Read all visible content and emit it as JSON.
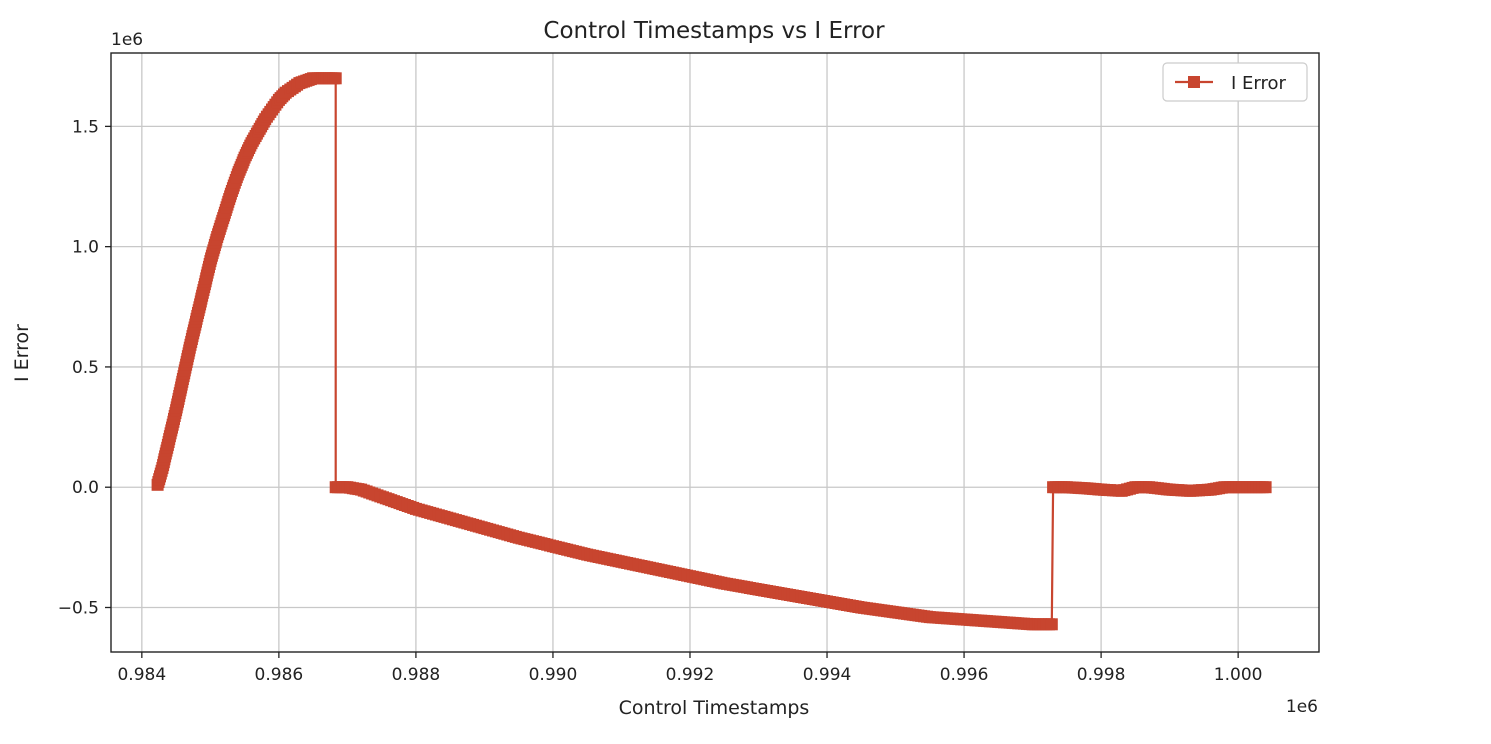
{
  "chart_data": {
    "type": "line",
    "title": "Control Timestamps vs I Error",
    "xlabel": "Control Timestamps",
    "ylabel": "I Error",
    "x_offset_label": "1e6",
    "y_offset_label": "1e6",
    "xlim": [
      0.98355,
      1.00118
    ],
    "ylim": [
      -0.685,
      1.805
    ],
    "x_ticks": [
      0.984,
      0.986,
      0.988,
      0.99,
      0.992,
      0.994,
      0.996,
      0.998,
      1.0
    ],
    "x_tick_labels": [
      "0.984",
      "0.986",
      "0.988",
      "0.990",
      "0.992",
      "0.994",
      "0.996",
      "0.998",
      "1.000"
    ],
    "y_ticks": [
      -0.5,
      0.0,
      0.5,
      1.0,
      1.5
    ],
    "y_tick_labels": [
      "−0.5",
      "0.0",
      "0.5",
      "1.0",
      "1.5"
    ],
    "grid": true,
    "legend_position": "top-right",
    "series": [
      {
        "name": "I Error",
        "color": "#c8452f",
        "marker": "square",
        "x": [
          0.98423,
          0.9843,
          0.9844,
          0.9845,
          0.9846,
          0.9847,
          0.9848,
          0.9849,
          0.985,
          0.9851,
          0.9852,
          0.9853,
          0.9854,
          0.9855,
          0.9856,
          0.9857,
          0.9858,
          0.9859,
          0.986,
          0.9861,
          0.9862,
          0.9863,
          0.9864,
          0.9865,
          0.9866,
          0.9867,
          0.9868,
          0.98683,
          0.98683,
          0.9869,
          0.987,
          0.9872,
          0.9874,
          0.9876,
          0.9878,
          0.988,
          0.9885,
          0.989,
          0.9895,
          0.99,
          0.9905,
          0.991,
          0.9915,
          0.992,
          0.9925,
          0.993,
          0.9935,
          0.994,
          0.9945,
          0.995,
          0.9955,
          0.996,
          0.9965,
          0.997,
          0.99728,
          0.9973,
          0.9975,
          0.9978,
          0.998,
          0.9983,
          0.9985,
          0.9987,
          0.999,
          0.9993,
          0.9996,
          0.9998,
          1.0001,
          1.0004
        ],
        "y": [
          0.01,
          0.08,
          0.2,
          0.32,
          0.45,
          0.58,
          0.7,
          0.82,
          0.94,
          1.04,
          1.13,
          1.22,
          1.3,
          1.37,
          1.43,
          1.48,
          1.53,
          1.57,
          1.61,
          1.64,
          1.66,
          1.68,
          1.69,
          1.7,
          1.7,
          1.7,
          1.7,
          1.7,
          0.0,
          0.0,
          0.0,
          -0.01,
          -0.03,
          -0.05,
          -0.07,
          -0.09,
          -0.13,
          -0.17,
          -0.21,
          -0.245,
          -0.28,
          -0.31,
          -0.34,
          -0.37,
          -0.4,
          -0.425,
          -0.45,
          -0.475,
          -0.5,
          -0.52,
          -0.54,
          -0.55,
          -0.56,
          -0.57,
          -0.57,
          0.0,
          0.0,
          -0.005,
          -0.01,
          -0.015,
          0.0,
          0.0,
          -0.01,
          -0.015,
          -0.01,
          0.0,
          0.0,
          0.0
        ]
      }
    ]
  }
}
